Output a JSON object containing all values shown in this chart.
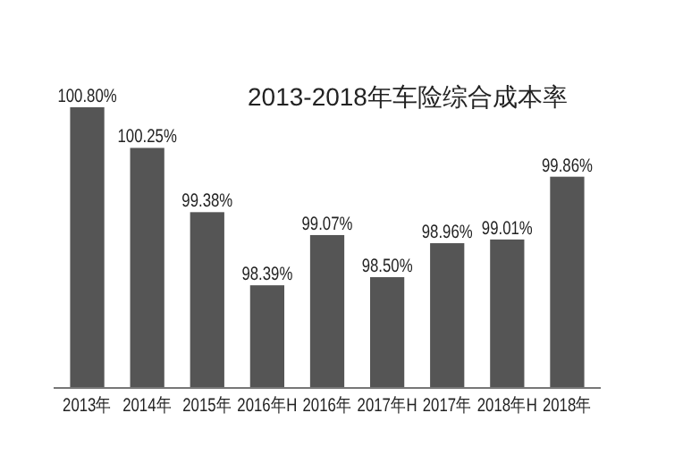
{
  "chart_data": {
    "type": "bar",
    "title": "2013-2018年车险综合成本率",
    "categories": [
      "2013年",
      "2014年",
      "2015年",
      "2016年H",
      "2016年",
      "2017年H",
      "2017年",
      "2018年H",
      "2018年"
    ],
    "values": [
      100.8,
      100.25,
      99.38,
      98.39,
      99.07,
      98.5,
      98.96,
      99.01,
      99.86
    ],
    "value_labels": [
      "100.80%",
      "100.25%",
      "99.38%",
      "98.39%",
      "99.07%",
      "98.50%",
      "98.96%",
      "99.01%",
      "99.86%"
    ],
    "color": "#555555",
    "ylim": [
      97,
      100.8
    ]
  }
}
